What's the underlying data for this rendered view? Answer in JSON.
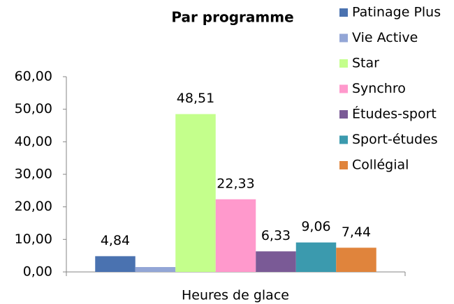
{
  "chart_data": {
    "type": "bar",
    "title": "Par programme",
    "xlabel": "Heures de glace",
    "categories": [
      "Heures de glace"
    ],
    "series": [
      {
        "name": "Patinage Plus",
        "color": "#4a72b0",
        "values": [
          4.84
        ],
        "value_labels": [
          "4,84"
        ]
      },
      {
        "name": "Vie Active",
        "color": "#93a6d6",
        "values": [
          1.5
        ],
        "value_labels": [
          null
        ]
      },
      {
        "name": "Star",
        "color": "#c4ff8c",
        "values": [
          48.51
        ],
        "value_labels": [
          "48,51"
        ]
      },
      {
        "name": "Synchro",
        "color": "#ff99cc",
        "values": [
          22.33
        ],
        "value_labels": [
          "22,33"
        ]
      },
      {
        "name": "Études-sport",
        "color": "#7a5a96",
        "values": [
          6.33
        ],
        "value_labels": [
          "6,33"
        ]
      },
      {
        "name": "Sport-études",
        "color": "#3b9aae",
        "values": [
          9.06
        ],
        "value_labels": [
          "9,06"
        ]
      },
      {
        "name": "Collégial",
        "color": "#e0843c",
        "values": [
          7.44
        ],
        "value_labels": [
          "7,44"
        ]
      }
    ],
    "ylim": [
      0,
      60
    ],
    "yticks": [
      {
        "value": 0,
        "label": "0,00"
      },
      {
        "value": 10,
        "label": "10,00"
      },
      {
        "value": 20,
        "label": "20,00"
      },
      {
        "value": 30,
        "label": "30,00"
      },
      {
        "value": 40,
        "label": "40,00"
      },
      {
        "value": 50,
        "label": "50,00"
      },
      {
        "value": 60,
        "label": "60,00"
      }
    ],
    "legend": "right"
  }
}
